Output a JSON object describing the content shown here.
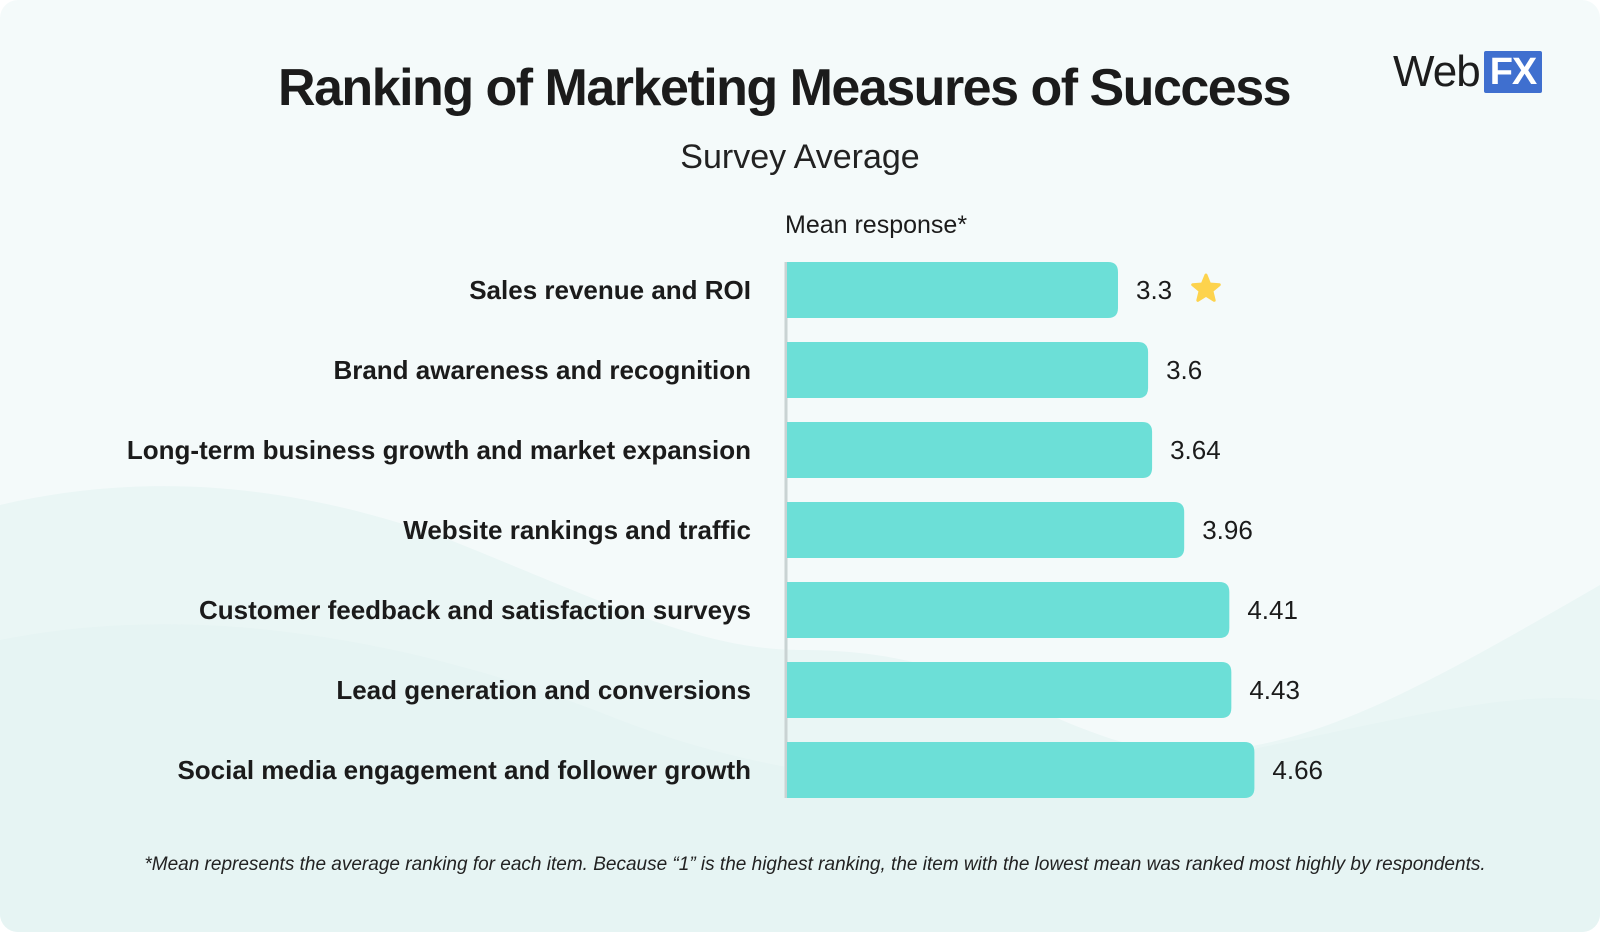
{
  "header": {
    "title": "Ranking of Marketing Measures of Success",
    "subtitle": "Survey Average"
  },
  "logo": {
    "web": "Web",
    "fx": "FX",
    "accent_color": "#3f6fcf"
  },
  "footnote": "*Mean represents the average ranking for each item. Because “1” is the highest ranking, the item with the lowest mean was ranked most highly by respondents.",
  "colors": {
    "bar": "#6cdfd7",
    "star": "#fdd34d",
    "axis": "#c9d3d3",
    "text": "#1b1b1b"
  },
  "chart_data": {
    "type": "bar",
    "orientation": "horizontal",
    "title": "Ranking of Marketing Measures of Success",
    "subtitle": "Survey Average",
    "xlabel": "Mean response*",
    "ylabel": "",
    "xlim": [
      0,
      5
    ],
    "grid": false,
    "categories": [
      "Sales revenue and ROI",
      "Brand awareness and recognition",
      "Long-term business growth and market expansion",
      "Website rankings and traffic",
      "Customer feedback and satisfaction surveys",
      "Lead generation and conversions",
      "Social media engagement and follower growth"
    ],
    "values": [
      3.3,
      3.6,
      3.64,
      3.96,
      4.41,
      4.43,
      4.66
    ],
    "value_labels": [
      "3.3",
      "3.6",
      "3.64",
      "3.96",
      "4.41",
      "4.43",
      "4.66"
    ],
    "highlight_index": 0,
    "highlight_icon": "star-icon"
  }
}
